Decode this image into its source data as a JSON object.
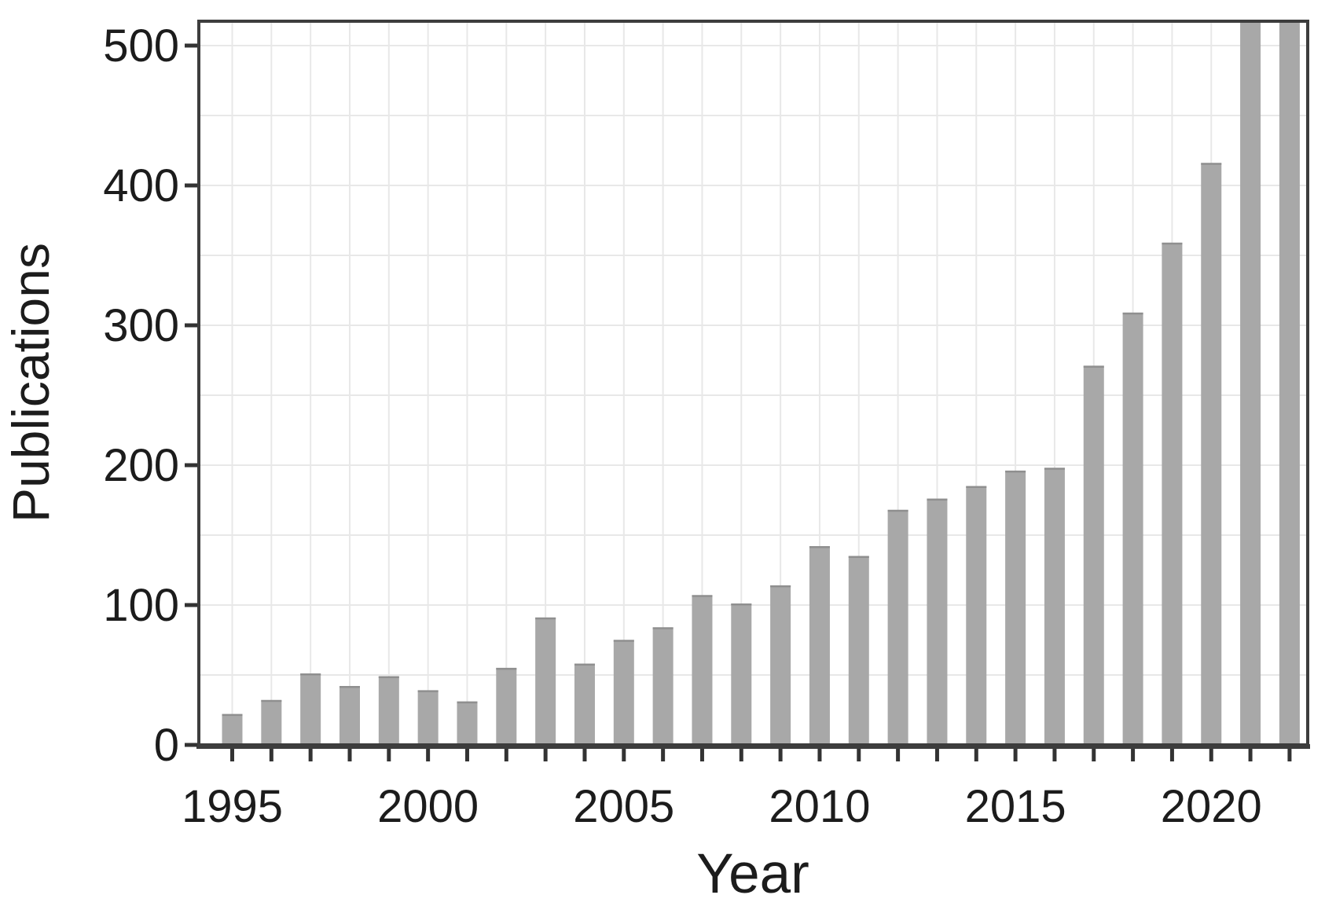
{
  "figure": {
    "kind": "publication-trend-bar-chart"
  },
  "chart_data": {
    "type": "bar",
    "title": "",
    "xlabel": "Year",
    "ylabel": "Publications",
    "categories": [
      1995,
      1996,
      1997,
      1998,
      1999,
      2000,
      2001,
      2002,
      2003,
      2004,
      2005,
      2006,
      2007,
      2008,
      2009,
      2010,
      2011,
      2012,
      2013,
      2014,
      2015,
      2016,
      2017,
      2018,
      2019,
      2020,
      2021,
      2022
    ],
    "values": [
      22,
      32,
      51,
      42,
      49,
      39,
      31,
      55,
      91,
      58,
      75,
      84,
      107,
      101,
      114,
      142,
      135,
      168,
      176,
      185,
      196,
      198,
      271,
      309,
      359,
      416,
      530,
      530
    ],
    "ylim": [
      0,
      517
    ],
    "y_ticks": [
      0,
      100,
      200,
      300,
      400,
      500
    ],
    "y_tick_labels": [
      "0",
      "100",
      "200",
      "300",
      "400",
      "500"
    ],
    "x_tick_years": [
      1995,
      2000,
      2005,
      2010,
      2015,
      2020
    ],
    "x_tick_labels": [
      "1995",
      "2000",
      "2005",
      "2010",
      "2015",
      "2020"
    ],
    "gridline_step": 50,
    "grid": "both-x-and-y",
    "legend": "none",
    "clipped_years": [
      2021,
      2022
    ],
    "clipped_note": "bars for 2021 and 2022 exceed the axis range and are clipped at the plot top",
    "colors": {
      "bar_fill": "#a8a8a8",
      "bar_top_edge": "#8f8f8f",
      "gridline": "#e8e8e8",
      "frame": "#3d3d3d",
      "tick": "#333333",
      "text": "#1c1c1c",
      "background": "#ffffff"
    }
  }
}
